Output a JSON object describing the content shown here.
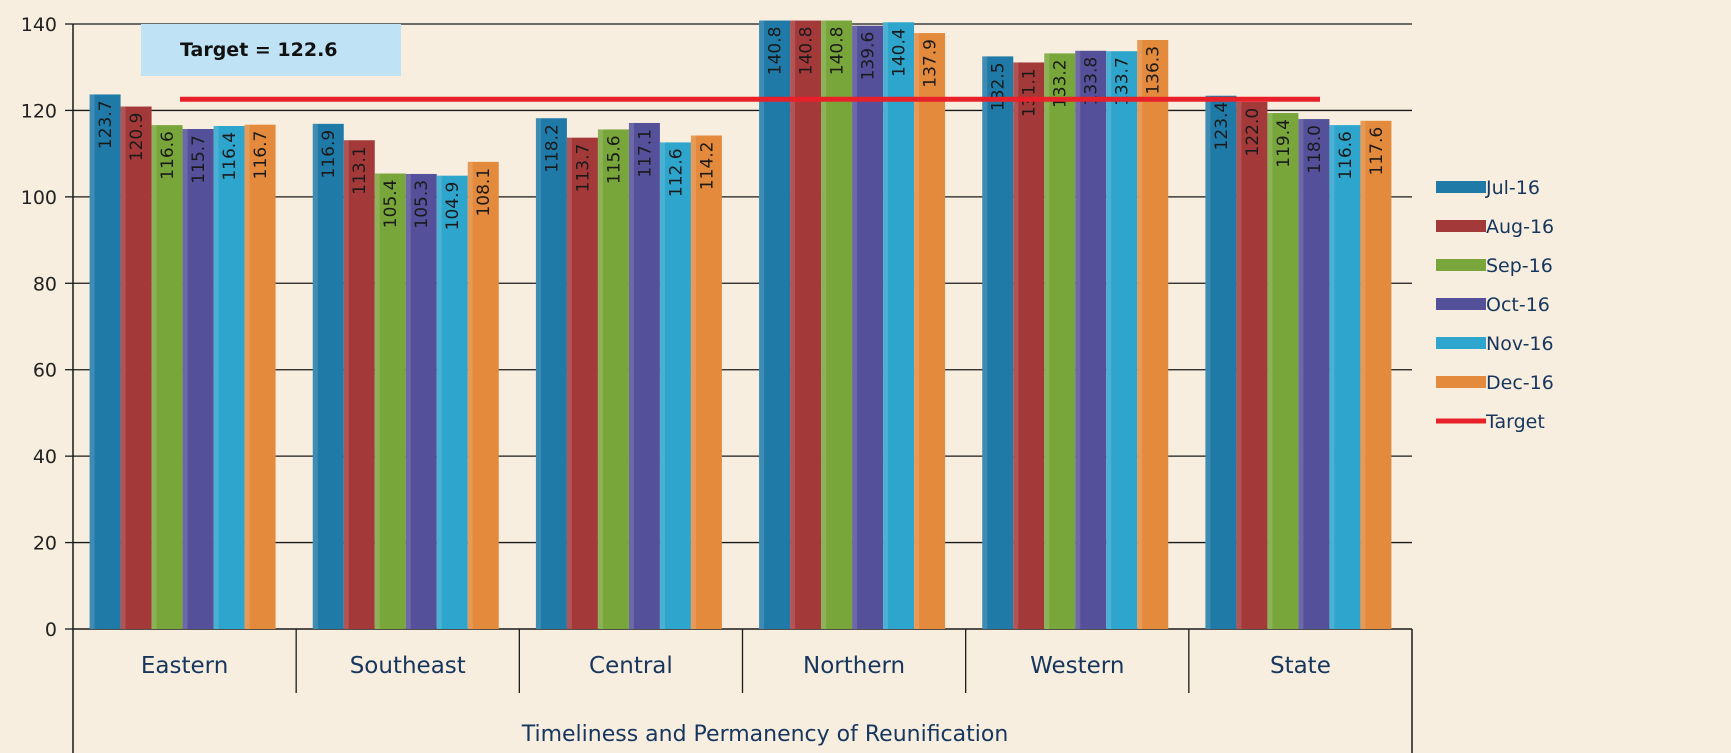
{
  "chart_data": {
    "type": "bar",
    "title": "",
    "xlabel": "Timeliness and Permanency of Reunification",
    "ylabel": "",
    "ylim": [
      0,
      140
    ],
    "yticks": [
      "0",
      "20",
      "40",
      "60",
      "80",
      "100",
      "120",
      "140"
    ],
    "categories": [
      "Eastern",
      "Southeast",
      "Central",
      "Northern",
      "Western",
      "State"
    ],
    "series": [
      {
        "name": "Jul-16",
        "color": "#1f7aa8",
        "values": [
          123.7,
          116.9,
          118.2,
          140.8,
          132.5,
          123.4
        ]
      },
      {
        "name": "Aug-16",
        "color": "#a4393a",
        "values": [
          120.9,
          113.1,
          113.7,
          140.8,
          131.1,
          122.0
        ]
      },
      {
        "name": "Sep-16",
        "color": "#78a63b",
        "values": [
          116.6,
          105.4,
          115.6,
          140.8,
          133.2,
          119.4
        ]
      },
      {
        "name": "Oct-16",
        "color": "#55509a",
        "values": [
          115.7,
          105.3,
          117.1,
          139.6,
          133.8,
          118.0
        ]
      },
      {
        "name": "Nov-16",
        "color": "#2da5cc",
        "values": [
          116.4,
          104.9,
          112.6,
          140.4,
          133.7,
          116.6
        ]
      },
      {
        "name": "Dec-16",
        "color": "#e48a3c",
        "values": [
          116.7,
          108.1,
          114.2,
          137.9,
          136.3,
          117.6
        ]
      }
    ],
    "data_labels": [
      [
        "123.7",
        "116.9",
        "118.2",
        "140.8",
        "132.5",
        "123.4"
      ],
      [
        "120.9",
        "113.1",
        "113.7",
        "140.8",
        "131.1",
        "122.0"
      ],
      [
        "116.6",
        "105.4",
        "115.6",
        "140.8",
        "133.2",
        "119.4"
      ],
      [
        "115.7",
        "105.3",
        "117.1",
        "139.6",
        "133.8",
        "118.0"
      ],
      [
        "116.4",
        "104.9",
        "112.6",
        "140.4",
        "133.7",
        "116.6"
      ],
      [
        "116.7",
        "108.1",
        "114.2",
        "137.9",
        "136.3",
        "117.6"
      ]
    ],
    "target": {
      "name": "Target",
      "value": 122.6,
      "color": "#e8202a",
      "label": "Target = 122.6"
    },
    "grid": true,
    "legend_position": "right"
  }
}
